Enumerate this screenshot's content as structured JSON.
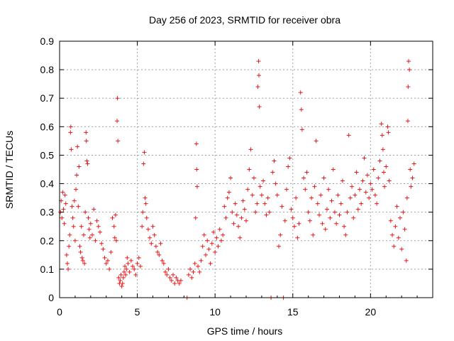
{
  "chart_data": {
    "type": "scatter",
    "title": "Day 256 of 2023, SRMTID for receiver obra",
    "xlabel": "GPS time / hours",
    "ylabel": "SRMTID / TECUs",
    "xlim": [
      0,
      24
    ],
    "ylim": [
      0,
      0.9
    ],
    "x_ticks": [
      "0",
      "5",
      "10",
      "15",
      "20"
    ],
    "y_ticks": [
      "0",
      "0.1",
      "0.2",
      "0.3",
      "0.4",
      "0.5",
      "0.6",
      "0.7",
      "0.8",
      "0.9"
    ],
    "grid": true,
    "marker": "plus",
    "series": [
      {
        "name": "SRMTID",
        "color": "#e41a1c",
        "points": [
          [
            0.05,
            0.3
          ],
          [
            0.1,
            0.34
          ],
          [
            0.15,
            0.28
          ],
          [
            0.2,
            0.37
          ],
          [
            0.25,
            0.31
          ],
          [
            0.3,
            0.26
          ],
          [
            0.35,
            0.36
          ],
          [
            0.4,
            0.33
          ],
          [
            0.45,
            0.15
          ],
          [
            0.5,
            0.12
          ],
          [
            0.55,
            0.1
          ],
          [
            0.6,
            0.18
          ],
          [
            0.65,
            0.22
          ],
          [
            0.7,
            0.58
          ],
          [
            0.72,
            0.6
          ],
          [
            0.75,
            0.52
          ],
          [
            0.8,
            0.32
          ],
          [
            0.85,
            0.28
          ],
          [
            0.9,
            0.25
          ],
          [
            0.95,
            0.34
          ],
          [
            1.0,
            0.2
          ],
          [
            1.05,
            0.38
          ],
          [
            1.1,
            0.43
          ],
          [
            1.15,
            0.53
          ],
          [
            1.2,
            0.32
          ],
          [
            1.25,
            0.46
          ],
          [
            1.3,
            0.18
          ],
          [
            1.35,
            0.16
          ],
          [
            1.4,
            0.25
          ],
          [
            1.45,
            0.14
          ],
          [
            1.5,
            0.13
          ],
          [
            1.55,
            0.22
          ],
          [
            1.6,
            0.12
          ],
          [
            1.65,
            0.3
          ],
          [
            1.7,
            0.58
          ],
          [
            1.72,
            0.55
          ],
          [
            1.75,
            0.48
          ],
          [
            1.8,
            0.47
          ],
          [
            1.85,
            0.28
          ],
          [
            1.9,
            0.24
          ],
          [
            1.95,
            0.21
          ],
          [
            2.0,
            0.26
          ],
          [
            2.1,
            0.22
          ],
          [
            2.2,
            0.31
          ],
          [
            2.3,
            0.2
          ],
          [
            2.4,
            0.27
          ],
          [
            2.5,
            0.25
          ],
          [
            2.6,
            0.23
          ],
          [
            2.7,
            0.19
          ],
          [
            2.8,
            0.17
          ],
          [
            2.9,
            0.14
          ],
          [
            3.0,
            0.12
          ],
          [
            3.1,
            0.13
          ],
          [
            3.2,
            0.1
          ],
          [
            3.3,
            0.16
          ],
          [
            3.4,
            0.28
          ],
          [
            3.5,
            0.25
          ],
          [
            3.55,
            0.21
          ],
          [
            3.6,
            0.29
          ],
          [
            3.65,
            0.2
          ],
          [
            3.7,
            0.62
          ],
          [
            3.72,
            0.7
          ],
          [
            3.75,
            0.55
          ],
          [
            3.8,
            0.07
          ],
          [
            3.85,
            0.05
          ],
          [
            3.9,
            0.06
          ],
          [
            3.95,
            0.08
          ],
          [
            4.0,
            0.04
          ],
          [
            4.05,
            0.05
          ],
          [
            4.1,
            0.07
          ],
          [
            4.15,
            0.09
          ],
          [
            4.2,
            0.11
          ],
          [
            4.25,
            0.08
          ],
          [
            4.3,
            0.1
          ],
          [
            4.35,
            0.14
          ],
          [
            4.4,
            0.12
          ],
          [
            4.5,
            0.09
          ],
          [
            4.6,
            0.13
          ],
          [
            4.7,
            0.11
          ],
          [
            4.8,
            0.1
          ],
          [
            4.9,
            0.08
          ],
          [
            5.0,
            0.12
          ],
          [
            5.1,
            0.14
          ],
          [
            5.2,
            0.11
          ],
          [
            5.3,
            0.25
          ],
          [
            5.35,
            0.3
          ],
          [
            5.4,
            0.47
          ],
          [
            5.45,
            0.51
          ],
          [
            5.5,
            0.35
          ],
          [
            5.55,
            0.33
          ],
          [
            5.6,
            0.28
          ],
          [
            5.7,
            0.24
          ],
          [
            5.8,
            0.21
          ],
          [
            5.9,
            0.19
          ],
          [
            6.0,
            0.25
          ],
          [
            6.1,
            0.22
          ],
          [
            6.2,
            0.18
          ],
          [
            6.3,
            0.16
          ],
          [
            6.4,
            0.15
          ],
          [
            6.5,
            0.19
          ],
          [
            6.6,
            0.13
          ],
          [
            6.7,
            0.12
          ],
          [
            6.8,
            0.09
          ],
          [
            6.9,
            0.08
          ],
          [
            7.0,
            0.1
          ],
          [
            7.1,
            0.07
          ],
          [
            7.2,
            0.06
          ],
          [
            7.3,
            0.08
          ],
          [
            7.4,
            0.05
          ],
          [
            7.5,
            0.07
          ],
          [
            7.6,
            0.06
          ],
          [
            7.7,
            0.05
          ],
          [
            7.8,
            0.06
          ],
          [
            8.2,
            0.0
          ],
          [
            8.3,
            0.08
          ],
          [
            8.4,
            0.1
          ],
          [
            8.5,
            0.07
          ],
          [
            8.6,
            0.09
          ],
          [
            8.7,
            0.12
          ],
          [
            8.75,
            0.28
          ],
          [
            8.8,
            0.54
          ],
          [
            8.82,
            0.45
          ],
          [
            8.85,
            0.39
          ],
          [
            8.9,
            0.11
          ],
          [
            9.0,
            0.09
          ],
          [
            9.1,
            0.13
          ],
          [
            9.2,
            0.18
          ],
          [
            9.3,
            0.22
          ],
          [
            9.4,
            0.15
          ],
          [
            9.5,
            0.2
          ],
          [
            9.6,
            0.17
          ],
          [
            9.7,
            0.12
          ],
          [
            9.8,
            0.19
          ],
          [
            9.9,
            0.23
          ],
          [
            10.0,
            0.16
          ],
          [
            10.1,
            0.21
          ],
          [
            10.2,
            0.18
          ],
          [
            10.3,
            0.24
          ],
          [
            10.4,
            0.2
          ],
          [
            10.5,
            0.22
          ],
          [
            10.6,
            0.32
          ],
          [
            10.7,
            0.28
          ],
          [
            10.8,
            0.35
          ],
          [
            10.9,
            0.37
          ],
          [
            11.0,
            0.42
          ],
          [
            11.1,
            0.3
          ],
          [
            11.2,
            0.26
          ],
          [
            11.3,
            0.33
          ],
          [
            11.4,
            0.29
          ],
          [
            11.5,
            0.25
          ],
          [
            11.6,
            0.21
          ],
          [
            11.7,
            0.28
          ],
          [
            11.8,
            0.34
          ],
          [
            11.9,
            0.31
          ],
          [
            12.0,
            0.27
          ],
          [
            12.1,
            0.38
          ],
          [
            12.2,
            0.45
          ],
          [
            12.3,
            0.52
          ],
          [
            12.4,
            0.36
          ],
          [
            12.5,
            0.42
          ],
          [
            12.6,
            0.3
          ],
          [
            12.7,
            0.33
          ],
          [
            12.75,
            0.74
          ],
          [
            12.8,
            0.83
          ],
          [
            12.82,
            0.78
          ],
          [
            12.85,
            0.67
          ],
          [
            12.9,
            0.39
          ],
          [
            13.0,
            0.36
          ],
          [
            13.1,
            0.41
          ],
          [
            13.2,
            0.33
          ],
          [
            13.3,
            0.29
          ],
          [
            13.4,
            0.35
          ],
          [
            13.5,
            0.3
          ],
          [
            13.6,
            0.0
          ],
          [
            13.7,
            0.44
          ],
          [
            13.8,
            0.48
          ],
          [
            13.9,
            0.4
          ],
          [
            14.0,
            0.36
          ],
          [
            14.1,
            0.18
          ],
          [
            14.2,
            0.22
          ],
          [
            14.3,
            0.32
          ],
          [
            14.4,
            0.0
          ],
          [
            14.5,
            0.27
          ],
          [
            14.6,
            0.38
          ],
          [
            14.7,
            0.46
          ],
          [
            14.8,
            0.49
          ],
          [
            14.9,
            0.31
          ],
          [
            15.0,
            0.28
          ],
          [
            15.1,
            0.25
          ],
          [
            15.2,
            0.35
          ],
          [
            15.3,
            0.21
          ],
          [
            15.4,
            0.26
          ],
          [
            15.5,
            0.72
          ],
          [
            15.55,
            0.66
          ],
          [
            15.6,
            0.59
          ],
          [
            15.7,
            0.42
          ],
          [
            15.8,
            0.38
          ],
          [
            15.9,
            0.44
          ],
          [
            16.0,
            0.3
          ],
          [
            16.1,
            0.27
          ],
          [
            16.2,
            0.35
          ],
          [
            16.3,
            0.22
          ],
          [
            16.4,
            0.39
          ],
          [
            16.5,
            0.55
          ],
          [
            16.6,
            0.33
          ],
          [
            16.7,
            0.29
          ],
          [
            16.8,
            0.36
          ],
          [
            16.9,
            0.26
          ],
          [
            17.0,
            0.42
          ],
          [
            17.1,
            0.24
          ],
          [
            17.2,
            0.31
          ],
          [
            17.3,
            0.38
          ],
          [
            17.4,
            0.28
          ],
          [
            17.5,
            0.34
          ],
          [
            17.6,
            0.45
          ],
          [
            17.7,
            0.3
          ],
          [
            17.8,
            0.26
          ],
          [
            17.9,
            0.36
          ],
          [
            18.0,
            0.29
          ],
          [
            18.1,
            0.33
          ],
          [
            18.2,
            0.41
          ],
          [
            18.3,
            0.25
          ],
          [
            18.4,
            0.22
          ],
          [
            18.5,
            0.3
          ],
          [
            18.6,
            0.57
          ],
          [
            18.7,
            0.35
          ],
          [
            18.8,
            0.39
          ],
          [
            18.9,
            0.28
          ],
          [
            19.0,
            0.36
          ],
          [
            19.1,
            0.44
          ],
          [
            19.2,
            0.31
          ],
          [
            19.3,
            0.38
          ],
          [
            19.4,
            0.33
          ],
          [
            19.5,
            0.41
          ],
          [
            19.6,
            0.49
          ],
          [
            19.7,
            0.37
          ],
          [
            19.8,
            0.43
          ],
          [
            19.9,
            0.35
          ],
          [
            20.0,
            0.4
          ],
          [
            20.1,
            0.38
          ],
          [
            20.2,
            0.45
          ],
          [
            20.3,
            0.36
          ],
          [
            20.4,
            0.33
          ],
          [
            20.5,
            0.42
          ],
          [
            20.6,
            0.48
          ],
          [
            20.7,
            0.61
          ],
          [
            20.75,
            0.57
          ],
          [
            20.8,
            0.52
          ],
          [
            20.85,
            0.44
          ],
          [
            20.9,
            0.39
          ],
          [
            21.0,
            0.46
          ],
          [
            21.1,
            0.6
          ],
          [
            21.15,
            0.58
          ],
          [
            21.2,
            0.41
          ],
          [
            21.3,
            0.27
          ],
          [
            21.4,
            0.22
          ],
          [
            21.5,
            0.18
          ],
          [
            21.6,
            0.25
          ],
          [
            21.7,
            0.32
          ],
          [
            21.8,
            0.21
          ],
          [
            21.9,
            0.28
          ],
          [
            22.0,
            0.17
          ],
          [
            22.1,
            0.3
          ],
          [
            22.2,
            0.24
          ],
          [
            22.3,
            0.13
          ],
          [
            22.35,
            0.35
          ],
          [
            22.4,
            0.62
          ],
          [
            22.42,
            0.74
          ],
          [
            22.45,
            0.83
          ],
          [
            22.5,
            0.8
          ],
          [
            22.55,
            0.45
          ],
          [
            22.6,
            0.39
          ],
          [
            22.7,
            0.42
          ],
          [
            22.8,
            0.47
          ]
        ]
      }
    ]
  }
}
